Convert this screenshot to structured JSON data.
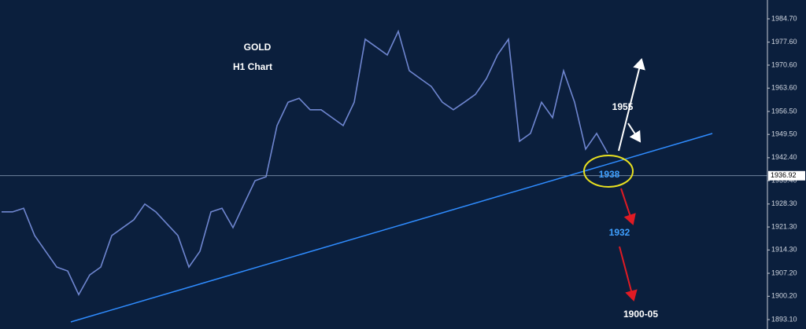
{
  "chart_data": {
    "type": "line",
    "title": "GOLD",
    "subtitle": "H1 Chart",
    "annotations": [
      "1955",
      "1938",
      "1932",
      "1900-05"
    ],
    "categories": [
      null,
      null,
      null,
      null,
      null,
      null,
      null,
      null,
      null,
      null,
      null,
      null,
      null,
      null,
      null,
      null,
      null,
      null,
      null,
      null,
      null,
      null,
      null,
      null,
      null,
      null,
      null,
      null,
      null,
      null,
      null,
      null,
      null,
      null,
      null,
      null,
      null,
      null,
      null,
      null,
      null,
      null,
      null,
      null,
      null,
      null,
      null,
      null,
      null,
      null,
      null,
      null,
      null,
      null,
      null,
      null
    ],
    "series": [
      {
        "name": "GOLD",
        "color": "#6f86d0",
        "values": [
          1925.9,
          1925.9,
          1927.0,
          1918.7,
          1913.9,
          1909.1,
          1907.9,
          1900.7,
          1906.7,
          1909.1,
          1918.7,
          1921.1,
          1923.5,
          1928.3,
          1925.9,
          1922.3,
          1918.7,
          1909.1,
          1913.9,
          1925.9,
          1927.0,
          1921.1,
          1928.3,
          1935.4,
          1936.6,
          1952.2,
          1959.3,
          1960.5,
          1957.0,
          1957.0,
          1954.6,
          1952.2,
          1959.3,
          1978.5,
          1976.1,
          1973.7,
          1980.9,
          1968.9,
          1966.5,
          1964.1,
          1959.3,
          1957.0,
          1959.3,
          1961.7,
          1966.5,
          1973.7,
          1978.5,
          1947.4,
          1949.8,
          1959.3,
          1954.6,
          1968.9,
          1959.3,
          1945.0,
          1949.8,
          1943.8
        ]
      }
    ],
    "current_price": 1936.92,
    "ylim": [
      1890.23,
      1990.44
    ],
    "yticks": [
      {
        "value": 1893.1,
        "label": "1893.10"
      },
      {
        "value": 1900.2,
        "label": "1900.20"
      },
      {
        "value": 1907.2,
        "label": "1907.20"
      },
      {
        "value": 1914.3,
        "label": "1914.30"
      },
      {
        "value": 1921.3,
        "label": "1921.30"
      },
      {
        "value": 1928.3,
        "label": "1928.30"
      },
      {
        "value": 1935.4,
        "label": "1935.40"
      },
      {
        "value": 1942.4,
        "label": "1942.40"
      },
      {
        "value": 1949.5,
        "label": "1949.50"
      },
      {
        "value": 1956.5,
        "label": "1956.50"
      },
      {
        "value": 1963.6,
        "label": "1963.60"
      },
      {
        "value": 1970.6,
        "label": "1970.60"
      },
      {
        "value": 1977.6,
        "label": "1977.60"
      },
      {
        "value": 1984.7,
        "label": "1984.70"
      }
    ],
    "grid": false
  }
}
